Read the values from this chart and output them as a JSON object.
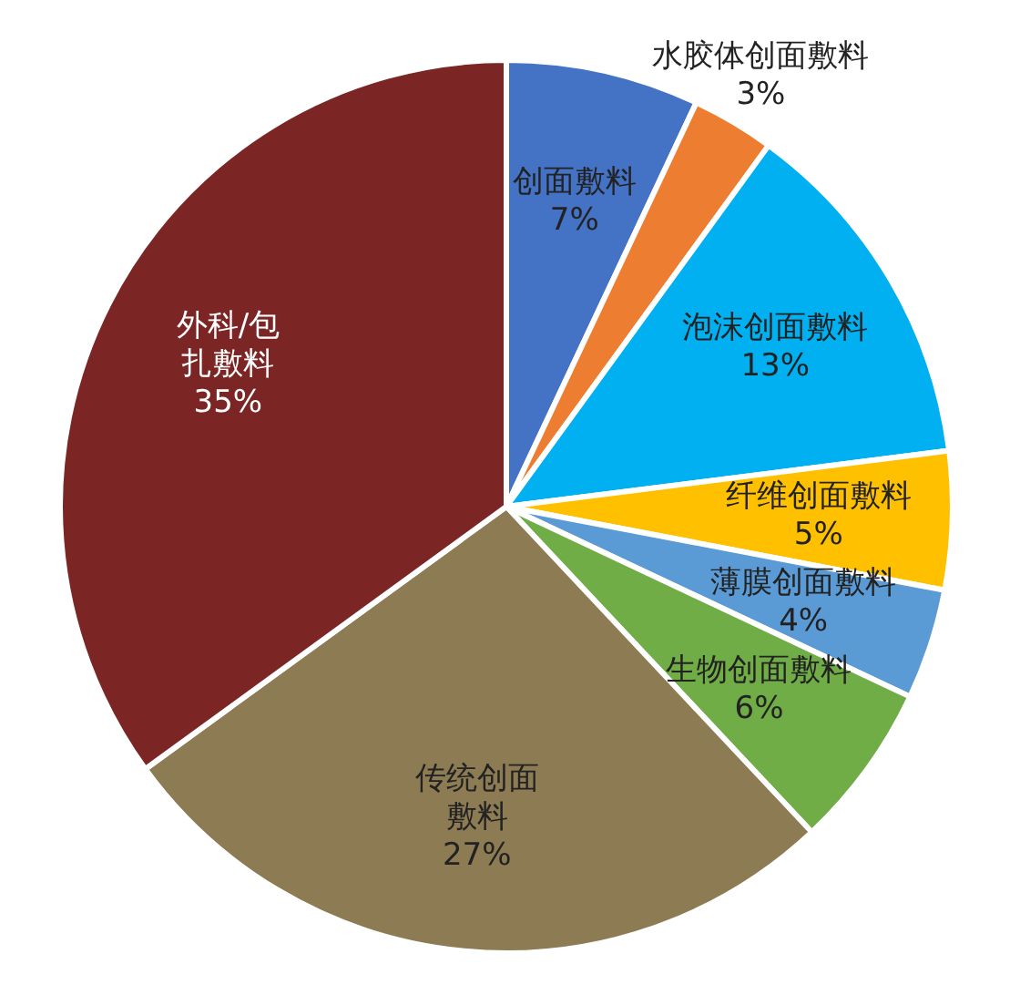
{
  "chart_data": {
    "type": "pie",
    "categories": [
      "创面敷料",
      "水胶体创面敷料",
      "泡沫创面敷料",
      "纤维创面敷料",
      "薄膜创面敷料",
      "生物创面敷料",
      "传统创面敷料",
      "外科/包扎敷料"
    ],
    "values": [
      7,
      3,
      13,
      5,
      4,
      6,
      27,
      35
    ],
    "value_labels": [
      "7%",
      "3%",
      "13%",
      "5%",
      "4%",
      "6%",
      "27%",
      "35%"
    ],
    "colors": [
      "#4472c4",
      "#ed7d31",
      "#00b0f0",
      "#ffc000",
      "#5b9bd5",
      "#70ad47",
      "#8c7b53",
      "#7b2525"
    ]
  }
}
